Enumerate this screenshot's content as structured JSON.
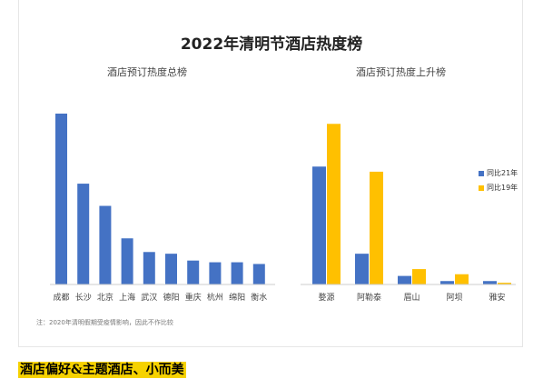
{
  "colors": {
    "blue": "#4472c4",
    "yellow": "#ffc000",
    "axis": "#cccccc"
  },
  "main_title": "2022年清明节酒店热度榜",
  "footnote": "注：2020年清明假期受疫情影响，因此不作比较",
  "section_heading": "酒店偏好&主题酒店、小而美",
  "chart_data": [
    {
      "type": "bar",
      "title": "酒店预订热度总榜",
      "categories": [
        "成都",
        "长沙",
        "北京",
        "上海",
        "武汉",
        "德阳",
        "重庆",
        "杭州",
        "绵阳",
        "衡水"
      ],
      "values": [
        100,
        59,
        46,
        27,
        19,
        18,
        14,
        13,
        13,
        12
      ],
      "ylim": [
        0,
        100
      ],
      "grid": false
    },
    {
      "type": "bar",
      "title": "酒店预订热度上升榜",
      "categories": [
        "婺源",
        "阿勒泰",
        "眉山",
        "阿坝",
        "雅安"
      ],
      "series": [
        {
          "name": "同比21年",
          "color": "#4472c4",
          "values": [
            69,
            18,
            5,
            2,
            2
          ]
        },
        {
          "name": "同比19年",
          "color": "#ffc000",
          "values": [
            94,
            66,
            9,
            6,
            1
          ]
        }
      ],
      "ylim": [
        0,
        100
      ],
      "legend": "right",
      "grid": false
    }
  ]
}
